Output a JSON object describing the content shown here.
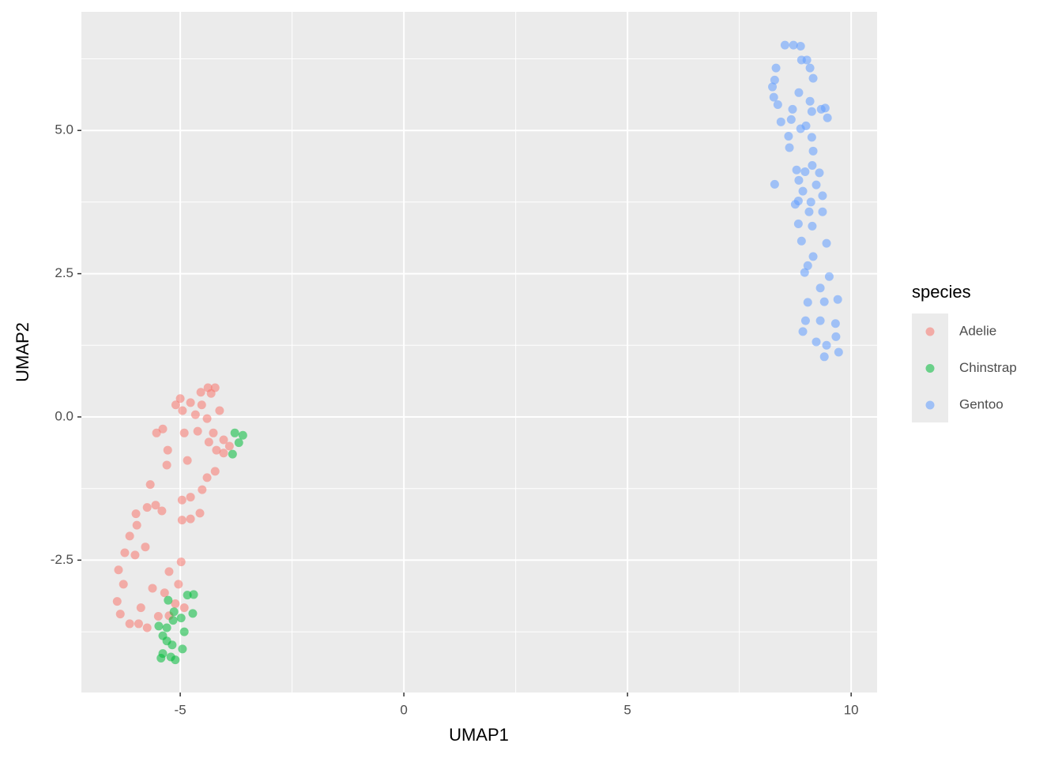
{
  "chart_data": {
    "type": "scatter",
    "xlabel": "UMAP1",
    "ylabel": "UMAP2",
    "xlim": [
      -7.21,
      10.58
    ],
    "ylim": [
      -4.81,
      7.07
    ],
    "xticks": [
      -5,
      0,
      5,
      10
    ],
    "yticks": [
      {
        "value": -2.5,
        "label": "-2.5"
      },
      {
        "value": 0,
        "label": "0.0"
      },
      2.5,
      {
        "value": 5,
        "label": "5.0"
      }
    ],
    "xminor": [
      -2.5,
      2.5,
      7.5
    ],
    "yminor": [
      -3.75,
      -1.25,
      1.25,
      3.75,
      6.25
    ],
    "grid": true,
    "legend_title": "species",
    "legend": "right",
    "alpha": 0.55,
    "series": [
      {
        "name": "Adelie",
        "color": "#F8766D",
        "x": [
          -4.38,
          -4.22,
          -4.54,
          -4.31,
          -5,
          -4.77,
          -4.52,
          -5.1,
          -4.95,
          -4.66,
          -4.12,
          -4.4,
          -5.39,
          -5.53,
          -4.91,
          -4.26,
          -4.61,
          -4.03,
          -4.36,
          -3.9,
          -4.19,
          -4.03,
          -5.28,
          -4.84,
          -5.3,
          -4.22,
          -4.4,
          -5.67,
          -4.51,
          -4.77,
          -4.96,
          -5.74,
          -5.55,
          -4.56,
          -5.41,
          -4.77,
          -5.99,
          -4.96,
          -5.97,
          -6.13,
          -5.78,
          -6.24,
          -6.01,
          -4.98,
          -6.38,
          -5.25,
          -6.27,
          -5.62,
          -5.35,
          -6.41,
          -5.88,
          -5.11,
          -6.34,
          -5.49,
          -6.13,
          -5.74,
          -5.25,
          -4.91,
          -5.93,
          -5.04
        ],
        "y": [
          0.51,
          0.51,
          0.43,
          0.41,
          0.32,
          0.25,
          0.21,
          0.21,
          0.11,
          0.04,
          0.11,
          -0.03,
          -0.21,
          -0.28,
          -0.28,
          -0.28,
          -0.25,
          -0.4,
          -0.44,
          -0.51,
          -0.58,
          -0.63,
          -0.58,
          -0.76,
          -0.84,
          -0.95,
          -1.06,
          -1.18,
          -1.27,
          -1.4,
          -1.45,
          -1.58,
          -1.54,
          -1.68,
          -1.64,
          -1.78,
          -1.69,
          -1.8,
          -1.89,
          -2.08,
          -2.27,
          -2.37,
          -2.41,
          -2.53,
          -2.67,
          -2.7,
          -2.92,
          -2.99,
          -3.07,
          -3.22,
          -3.33,
          -3.26,
          -3.44,
          -3.48,
          -3.61,
          -3.68,
          -3.47,
          -3.33,
          -3.61,
          -2.92
        ]
      },
      {
        "name": "Chinstrap",
        "color": "#00BA38",
        "x": [
          -3.78,
          -3.6,
          -3.69,
          -3.83,
          -5.27,
          -4.84,
          -4.7,
          -4.72,
          -5.14,
          -4.98,
          -5.48,
          -5.39,
          -5.16,
          -5.3,
          -5.18,
          -4.95,
          -5.39,
          -5.21,
          -5.11,
          -5.43,
          -5.3,
          -4.91
        ],
        "y": [
          -0.28,
          -0.32,
          -0.45,
          -0.65,
          -3.2,
          -3.11,
          -3.1,
          -3.43,
          -3.4,
          -3.51,
          -3.65,
          -3.82,
          -3.55,
          -3.91,
          -3.98,
          -4.05,
          -4.13,
          -4.19,
          -4.24,
          -4.21,
          -3.68,
          -3.75
        ]
      },
      {
        "name": "Gentoo",
        "color": "#619CFF",
        "x": [
          8.52,
          8.71,
          8.87,
          8.89,
          9.01,
          8.32,
          9.08,
          9.15,
          8.29,
          8.24,
          8.83,
          8.27,
          9.08,
          8.69,
          8.36,
          9.33,
          9.42,
          9.12,
          8.66,
          8.43,
          9.47,
          8.99,
          8.87,
          8.6,
          9.12,
          8.62,
          9.15,
          9.13,
          8.78,
          8.97,
          9.29,
          8.83,
          8.29,
          9.22,
          8.92,
          9.36,
          8.82,
          9.1,
          8.75,
          9.06,
          9.36,
          8.82,
          9.13,
          9.45,
          8.89,
          9.15,
          9.03,
          8.96,
          9.51,
          9.31,
          9.03,
          9.4,
          9.7,
          8.98,
          9.31,
          9.65,
          8.92,
          9.22,
          9.45,
          9.66,
          9.72,
          9.4
        ],
        "y": [
          6.49,
          6.49,
          6.47,
          6.23,
          6.23,
          6.09,
          6.09,
          5.91,
          5.88,
          5.76,
          5.66,
          5.58,
          5.51,
          5.37,
          5.45,
          5.37,
          5.39,
          5.33,
          5.19,
          5.15,
          5.22,
          5.08,
          5.03,
          4.9,
          4.88,
          4.7,
          4.64,
          4.39,
          4.31,
          4.28,
          4.26,
          4.13,
          4.06,
          4.05,
          3.94,
          3.86,
          3.77,
          3.75,
          3.71,
          3.58,
          3.58,
          3.37,
          3.33,
          3.03,
          3.07,
          2.8,
          2.64,
          2.52,
          2.45,
          2.25,
          2.0,
          2.01,
          2.05,
          1.68,
          1.68,
          1.63,
          1.49,
          1.31,
          1.25,
          1.4,
          1.13,
          1.05
        ]
      }
    ]
  }
}
